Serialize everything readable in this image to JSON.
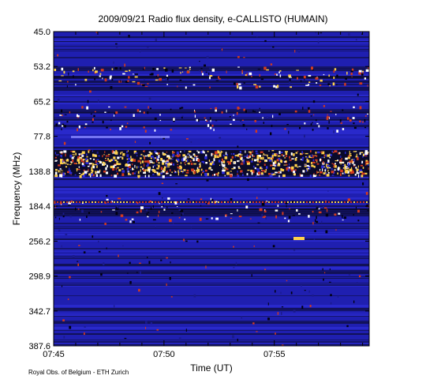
{
  "chart_data": {
    "type": "heatmap",
    "title": "2009/09/21  Radio flux density, e-CALLISTO (HUMAIN)",
    "xlabel": "Time (UT)",
    "ylabel": "Frequency (MHz)",
    "x_ticks": [
      "07:45",
      "07:50",
      "07:55"
    ],
    "x_tick_minutes": [
      0,
      5,
      10
    ],
    "x_range_minutes": [
      0,
      14.3
    ],
    "y_ticks": [
      "45.0",
      "53.2",
      "65.2",
      "77.8",
      "138.8",
      "184.4",
      "256.2",
      "298.9",
      "342.7",
      "387.6"
    ],
    "y_range_mhz": [
      45.0,
      387.6
    ],
    "y_axis_inverted": true,
    "colormap": [
      "#000010",
      "#1a1a8c",
      "#2a2ad6",
      "#d23a1e",
      "#ffd24a",
      "#ffffff"
    ]
  },
  "credit": "Royal Obs. of Belgium - ETH Zurich"
}
